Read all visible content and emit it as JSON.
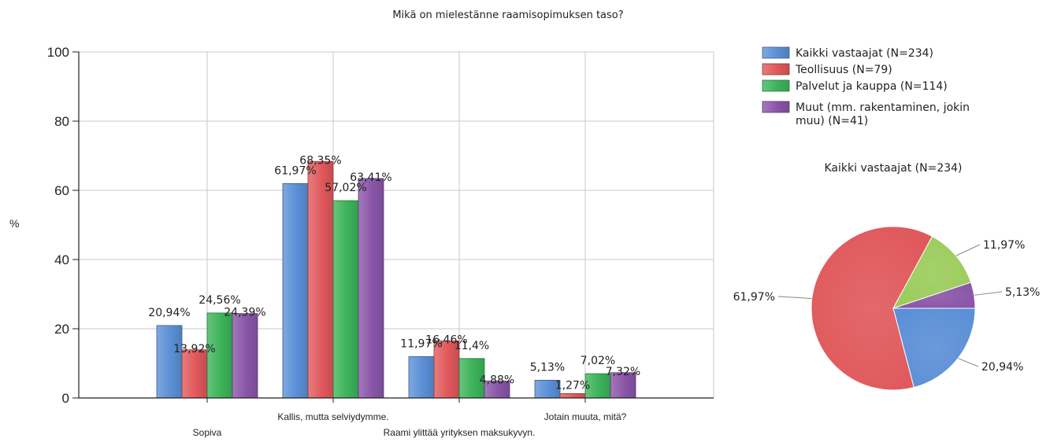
{
  "chart_data": [
    {
      "type": "bar",
      "title": "Mikä on mielestänne raamisopimuksen taso?",
      "ylabel": "%",
      "ylim": [
        0,
        100
      ],
      "yticks": [
        "0",
        "20",
        "40",
        "60",
        "80",
        "100"
      ],
      "grid": true,
      "legend_position": "right",
      "categories": [
        "Sopiva",
        "Kallis, mutta selviydymme.",
        "Raami ylittää yrityksen maksukyvyn.",
        "Jotain muuta, mitä?"
      ],
      "series": [
        {
          "name": "Kaikki vastaajat (N=234)",
          "color": "#5b8fd6",
          "values": [
            20.94,
            61.97,
            11.97,
            5.13
          ],
          "labels": [
            "20,94%",
            "61,97%",
            "11,97%",
            "5,13%"
          ]
        },
        {
          "name": "Teollisuus (N=79)",
          "color": "#e0585b",
          "values": [
            13.92,
            68.35,
            16.46,
            1.27
          ],
          "labels": [
            "13,92%",
            "68,35%",
            "16,46%",
            "1,27%"
          ]
        },
        {
          "name": "Palvelut ja kauppa (N=114)",
          "color": "#3cb35a",
          "values": [
            24.56,
            57.02,
            11.4,
            7.02
          ],
          "labels": [
            "24,56%",
            "57,02%",
            "11,4%",
            "7,02%"
          ]
        },
        {
          "name": "Muut (mm. rakentaminen, jokin muu) (N=41)",
          "legend_lines": [
            "Muut (mm. rakentaminen, jokin",
            "muu) (N=41)"
          ],
          "color": "#8a55a8",
          "values": [
            24.39,
            63.41,
            4.88,
            7.32
          ],
          "labels": [
            "24,39%",
            "63,41%",
            "4,88%",
            "7,32%"
          ]
        }
      ]
    },
    {
      "type": "pie",
      "title": "Kaikki vastaajat (N=234)",
      "slices": [
        {
          "category": "Sopiva",
          "value": 20.94,
          "label": "20,94%",
          "color": "#5b8fd6"
        },
        {
          "category": "Kallis, mutta selviydymme.",
          "value": 61.97,
          "label": "61,97%",
          "color": "#e0585b"
        },
        {
          "category": "Raami ylittää yrityksen maksukyvyn.",
          "value": 11.97,
          "label": "11,97%",
          "color": "#9bcc5a"
        },
        {
          "category": "Jotain muuta, mitä?",
          "value": 5.13,
          "label": "5,13%",
          "color": "#8a55a8"
        }
      ]
    }
  ]
}
